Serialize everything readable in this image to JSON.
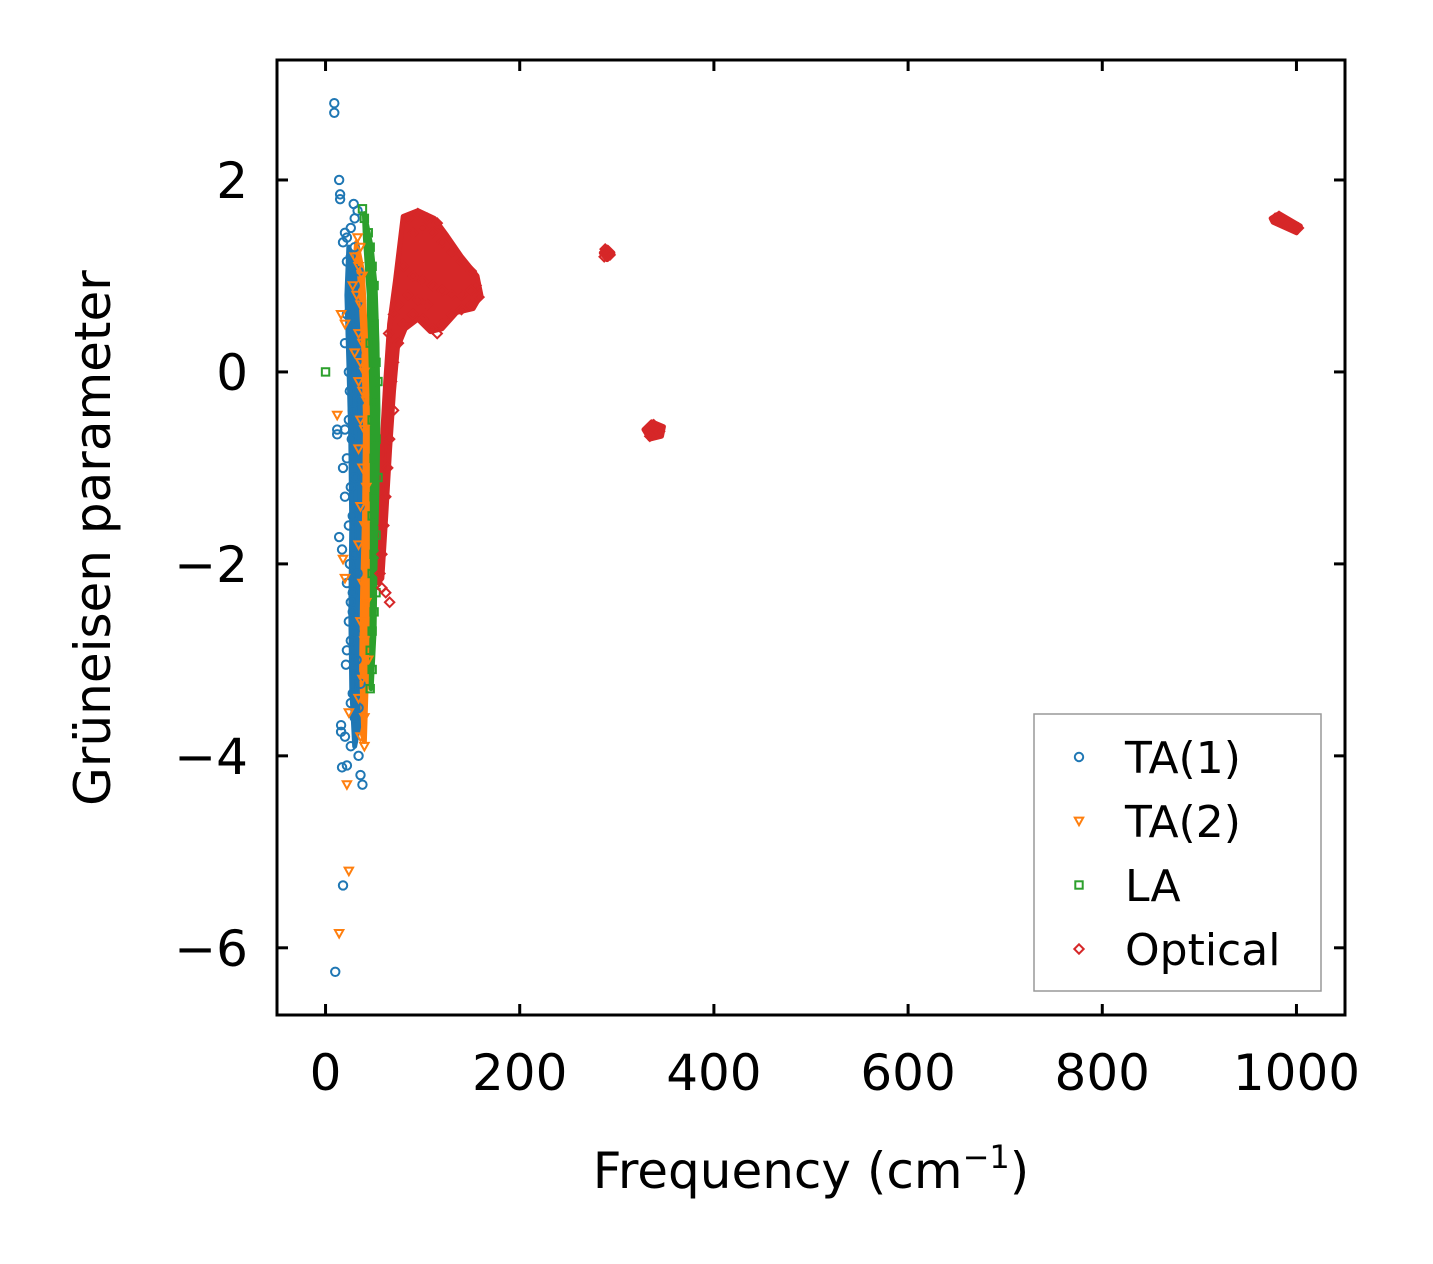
{
  "chart_data": {
    "type": "scatter",
    "xlabel": "Frequency (cm",
    "xlabel_sup": "−1",
    "xlabel_tail": ")",
    "ylabel": "Grüneisen parameter",
    "xlim": [
      -50,
      1050
    ],
    "ylim": [
      -6.7,
      3.25
    ],
    "x_ticks": [
      0,
      200,
      400,
      600,
      800,
      1000
    ],
    "x_tick_labels": [
      "0",
      "200",
      "400",
      "600",
      "800",
      "1000"
    ],
    "y_ticks": [
      -6,
      -4,
      -2,
      0,
      2
    ],
    "y_tick_labels": [
      "−6",
      "−4",
      "−2",
      "0",
      "2"
    ],
    "legend_position": "lower-right",
    "series": [
      {
        "name": "TA(1)",
        "marker": "circle",
        "color": "#1f77b4",
        "points": [
          [
            9,
            2.8
          ],
          [
            9,
            2.7
          ],
          [
            14,
            2.0
          ],
          [
            15,
            1.85
          ],
          [
            15,
            1.8
          ],
          [
            29,
            1.75
          ],
          [
            33,
            1.68
          ],
          [
            30,
            1.6
          ],
          [
            26,
            1.5
          ],
          [
            20,
            1.45
          ],
          [
            22,
            1.4
          ],
          [
            18,
            1.35
          ],
          [
            30,
            1.3
          ],
          [
            26,
            1.2
          ],
          [
            22,
            1.15
          ],
          [
            28,
            1.1
          ],
          [
            34,
            1.05
          ],
          [
            30,
            0.9
          ],
          [
            26,
            0.8
          ],
          [
            33,
            0.7
          ],
          [
            22,
            0.6
          ],
          [
            30,
            0.5
          ],
          [
            26,
            0.4
          ],
          [
            20,
            0.3
          ],
          [
            32,
            0.2
          ],
          [
            28,
            0.1
          ],
          [
            24,
            0.0
          ],
          [
            30,
            -0.1
          ],
          [
            25,
            -0.2
          ],
          [
            35,
            -0.3
          ],
          [
            28,
            -0.4
          ],
          [
            24,
            -0.5
          ],
          [
            12,
            -0.6
          ],
          [
            12,
            -0.65
          ],
          [
            20,
            -0.6
          ],
          [
            27,
            -0.7
          ],
          [
            33,
            -0.8
          ],
          [
            22,
            -0.9
          ],
          [
            18,
            -1.0
          ],
          [
            30,
            -1.1
          ],
          [
            26,
            -1.2
          ],
          [
            20,
            -1.3
          ],
          [
            35,
            -1.4
          ],
          [
            28,
            -1.5
          ],
          [
            24,
            -1.6
          ],
          [
            14,
            -1.72
          ],
          [
            17,
            -1.85
          ],
          [
            30,
            -1.9
          ],
          [
            25,
            -2.0
          ],
          [
            33,
            -2.1
          ],
          [
            22,
            -2.2
          ],
          [
            28,
            -2.3
          ],
          [
            26,
            -2.4
          ],
          [
            28,
            -2.5
          ],
          [
            24,
            -2.6
          ],
          [
            30,
            -2.7
          ],
          [
            26,
            -2.8
          ],
          [
            22,
            -2.9
          ],
          [
            32,
            -3.0
          ],
          [
            21,
            -3.05
          ],
          [
            30,
            -3.15
          ],
          [
            36,
            -3.25
          ],
          [
            28,
            -3.35
          ],
          [
            26,
            -3.45
          ],
          [
            34,
            -3.5
          ],
          [
            30,
            -3.6
          ],
          [
            16,
            -3.68
          ],
          [
            16,
            -3.75
          ],
          [
            20,
            -3.8
          ],
          [
            26,
            -3.9
          ],
          [
            34,
            -4.0
          ],
          [
            22,
            -4.1
          ],
          [
            17,
            -4.12
          ],
          [
            36,
            -4.2
          ],
          [
            38,
            -4.3
          ],
          [
            18,
            -5.35
          ],
          [
            10,
            -6.25
          ]
        ]
      },
      {
        "name": "TA(2)",
        "marker": "triangle-down",
        "color": "#ff7f0e",
        "points": [
          [
            33,
            1.4
          ],
          [
            36,
            1.3
          ],
          [
            30,
            1.2
          ],
          [
            34,
            1.1
          ],
          [
            38,
            1.0
          ],
          [
            28,
            0.9
          ],
          [
            32,
            0.8
          ],
          [
            36,
            0.7
          ],
          [
            16,
            0.6
          ],
          [
            20,
            0.5
          ],
          [
            34,
            0.4
          ],
          [
            38,
            0.3
          ],
          [
            30,
            0.2
          ],
          [
            36,
            0.1
          ],
          [
            40,
            0.0
          ],
          [
            34,
            -0.1
          ],
          [
            38,
            -0.2
          ],
          [
            42,
            -0.3
          ],
          [
            12,
            -0.45
          ],
          [
            36,
            -0.5
          ],
          [
            40,
            -0.6
          ],
          [
            34,
            -0.8
          ],
          [
            38,
            -1.0
          ],
          [
            42,
            -1.2
          ],
          [
            36,
            -1.4
          ],
          [
            40,
            -1.6
          ],
          [
            34,
            -1.8
          ],
          [
            18,
            -1.95
          ],
          [
            20,
            -2.15
          ],
          [
            38,
            -2.2
          ],
          [
            42,
            -2.4
          ],
          [
            36,
            -2.6
          ],
          [
            40,
            -2.8
          ],
          [
            44,
            -3.0
          ],
          [
            38,
            -3.2
          ],
          [
            34,
            -3.4
          ],
          [
            24,
            -3.55
          ],
          [
            40,
            -3.6
          ],
          [
            36,
            -3.8
          ],
          [
            40,
            -3.9
          ],
          [
            22,
            -4.3
          ],
          [
            24,
            -5.2
          ],
          [
            14,
            -5.85
          ]
        ]
      },
      {
        "name": "LA",
        "marker": "square",
        "color": "#2ca02c",
        "points": [
          [
            38,
            1.7
          ],
          [
            40,
            1.6
          ],
          [
            44,
            1.45
          ],
          [
            46,
            1.3
          ],
          [
            48,
            1.1
          ],
          [
            50,
            0.9
          ],
          [
            48,
            0.7
          ],
          [
            50,
            0.5
          ],
          [
            46,
            0.3
          ],
          [
            52,
            0.1
          ],
          [
            0,
            0.0
          ],
          [
            54,
            -0.1
          ],
          [
            50,
            -0.3
          ],
          [
            48,
            -0.5
          ],
          [
            52,
            -0.7
          ],
          [
            50,
            -0.9
          ],
          [
            54,
            -1.1
          ],
          [
            50,
            -1.3
          ],
          [
            48,
            -1.5
          ],
          [
            52,
            -1.7
          ],
          [
            50,
            -1.9
          ],
          [
            48,
            -2.1
          ],
          [
            52,
            -2.3
          ],
          [
            50,
            -2.5
          ],
          [
            48,
            -2.7
          ],
          [
            46,
            -2.9
          ],
          [
            48,
            -3.1
          ],
          [
            46,
            -3.3
          ]
        ]
      },
      {
        "name": "Optical",
        "marker": "diamond",
        "color": "#d62728",
        "points": [
          [
            85,
            1.6
          ],
          [
            95,
            1.65
          ],
          [
            105,
            1.6
          ],
          [
            115,
            1.55
          ],
          [
            90,
            1.45
          ],
          [
            100,
            1.5
          ],
          [
            110,
            1.45
          ],
          [
            120,
            1.35
          ],
          [
            130,
            1.25
          ],
          [
            140,
            1.15
          ],
          [
            150,
            1.05
          ],
          [
            155,
            0.9
          ],
          [
            158,
            0.78
          ],
          [
            150,
            0.7
          ],
          [
            140,
            0.65
          ],
          [
            130,
            0.6
          ],
          [
            120,
            0.5
          ],
          [
            115,
            0.4
          ],
          [
            110,
            0.45
          ],
          [
            100,
            0.55
          ],
          [
            90,
            0.6
          ],
          [
            80,
            0.5
          ],
          [
            75,
            0.3
          ],
          [
            70,
            0.1
          ],
          [
            68,
            -0.1
          ],
          [
            70,
            -0.4
          ],
          [
            66,
            -0.7
          ],
          [
            64,
            -1.0
          ],
          [
            62,
            -1.3
          ],
          [
            60,
            -1.6
          ],
          [
            58,
            -1.9
          ],
          [
            56,
            -2.1
          ],
          [
            58,
            -2.25
          ],
          [
            62,
            -2.3
          ],
          [
            66,
            -2.4
          ],
          [
            80,
            1.1
          ],
          [
            90,
            1.0
          ],
          [
            100,
            0.95
          ],
          [
            110,
            0.9
          ],
          [
            120,
            0.85
          ],
          [
            130,
            0.8
          ],
          [
            140,
            0.8
          ],
          [
            150,
            0.85
          ],
          [
            85,
            0.8
          ],
          [
            95,
            0.75
          ],
          [
            105,
            0.7
          ],
          [
            75,
            0.7
          ],
          [
            70,
            0.6
          ],
          [
            65,
            0.4
          ],
          [
            287,
            1.2
          ],
          [
            290,
            1.25
          ],
          [
            293,
            1.22
          ],
          [
            288,
            1.28
          ],
          [
            332,
            -0.6
          ],
          [
            336,
            -0.65
          ],
          [
            340,
            -0.58
          ],
          [
            344,
            -0.62
          ],
          [
            338,
            -0.55
          ],
          [
            334,
            -0.67
          ],
          [
            978,
            1.6
          ],
          [
            985,
            1.58
          ],
          [
            992,
            1.55
          ],
          [
            998,
            1.52
          ],
          [
            1002,
            1.5
          ],
          [
            982,
            1.62
          ]
        ]
      }
    ]
  }
}
